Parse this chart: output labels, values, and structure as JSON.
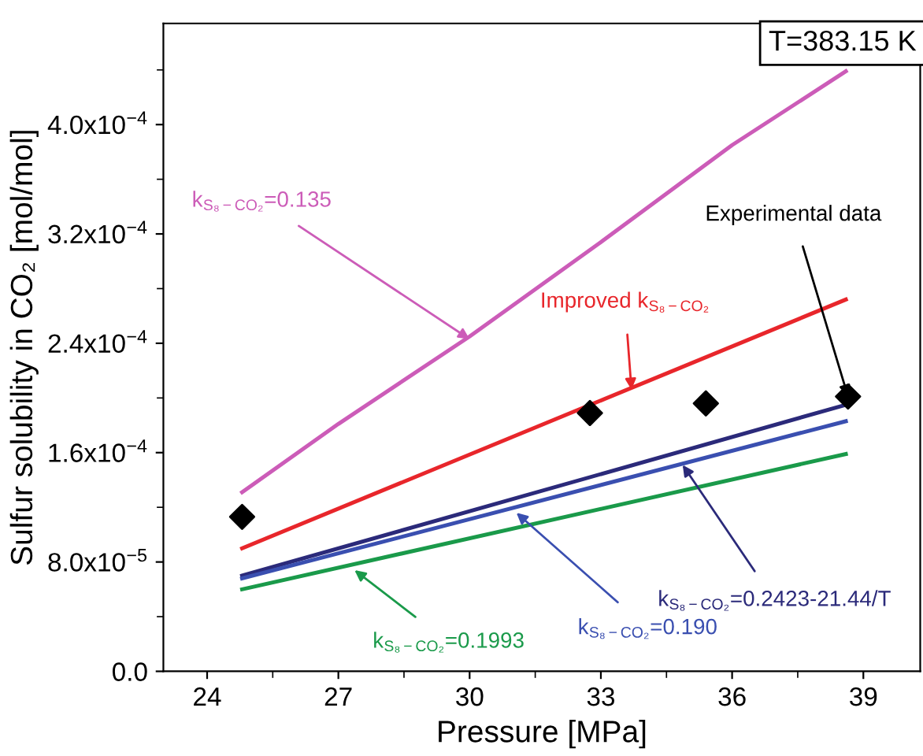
{
  "chart_data": {
    "type": "line",
    "xlabel": "Pressure [MPa]",
    "ylabel": "Sulfur solubility in CO₂ [mol/mol]",
    "xlim": [
      23,
      40.3
    ],
    "ylim": [
      0,
      0.000474
    ],
    "xticks": [
      24,
      27,
      30,
      33,
      36,
      39
    ],
    "yticks": [
      {
        "value": 0,
        "label": "0.0"
      },
      {
        "value": 8e-05,
        "label": "8.0x10$^{−5}$"
      },
      {
        "value": 0.00016,
        "label": "1.6x10$^{−4}$"
      },
      {
        "value": 0.00024,
        "label": "2.4x10$^{−4}$"
      },
      {
        "value": 0.00032,
        "label": "3.2x10$^{−4}$"
      },
      {
        "value": 0.0004,
        "label": "4.0x10$^{−4}$"
      }
    ],
    "grid": false,
    "legend": false,
    "series": [
      {
        "color": "#cc5cb8",
        "x": [
          24.8,
          27,
          30,
          33,
          36,
          38.6
        ],
        "values": [
          0.000131,
          0.000181,
          0.000245,
          0.000314,
          0.000385,
          0.000439
        ]
      },
      {
        "color": "#e8262b",
        "x": [
          24.8,
          38.6
        ],
        "values": [
          9e-05,
          0.000272
        ]
      },
      {
        "color": "#2b2a7a",
        "x": [
          24.8,
          38.6
        ],
        "values": [
          7e-05,
          0.000195
        ]
      },
      {
        "color": "#3a4fb0",
        "x": [
          24.8,
          38.6
        ],
        "values": [
          6.8e-05,
          0.000183
        ]
      },
      {
        "color": "#1a9a4a",
        "x": [
          24.8,
          38.6
        ],
        "values": [
          6e-05,
          0.000159
        ]
      },
      {
        "type": "scatter",
        "marker": "diamond",
        "color": "#000000",
        "x": [
          24.8,
          32.75,
          35.4,
          38.65
        ],
        "values": [
          0.000113,
          0.000189,
          0.000196,
          0.000201
        ]
      }
    ],
    "annotations": [
      {
        "text": "k$_{S₈−CO₂}$=0.135",
        "x": 30,
        "y": 0.000243
      },
      {
        "text": "Improved k$_{S₈−CO₂}$",
        "x": 33.7,
        "y": 0.000206
      },
      {
        "text": "Experimental data",
        "x": 38.65,
        "y": 0.000201
      },
      {
        "text": "k$_{S₈−CO₂}$=0.2423-21.44/T",
        "x": 34.87,
        "y": 0.000151
      },
      {
        "text": "k$_{S₈−CO₂}$=0.190",
        "x": 31.07,
        "y": 0.000116
      },
      {
        "text": "k$_{S₈−CO₂}$=0.1993",
        "x": 27.37,
        "y": 7.4e-05
      },
      "T=383.15 K"
    ]
  }
}
